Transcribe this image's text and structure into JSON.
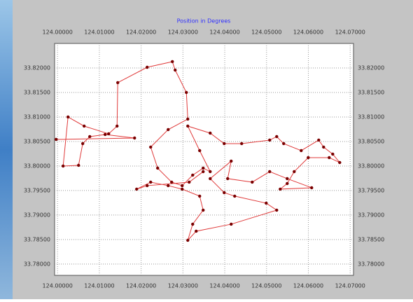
{
  "chart_data": {
    "type": "line",
    "title": "Position in Degrees",
    "x": [
      123.99967,
      124.01843,
      124.01139,
      124.00771,
      124.00603,
      124.00503,
      124.00134,
      124.00251,
      124.00637,
      124.01223,
      124.01424,
      124.01441,
      124.02144,
      124.02747,
      124.02814,
      124.03082,
      124.03116,
      124.02647,
      124.02228,
      124.02395,
      124.0273,
      124.02982,
      124.03233,
      124.03484,
      124.03652,
      124.034,
      124.03116,
      124.03652,
      124.03987,
      124.04405,
      124.05075,
      124.05243,
      124.0541,
      124.05829,
      124.06248,
      124.06365,
      124.06583,
      124.0675,
      124.06499,
      124.05997,
      124.05662,
      124.05494,
      124.05327,
      124.0608,
      124.05494,
      124.05075,
      124.04657,
      124.0407,
      124.04154,
      124.03652,
      124.03987,
      124.04238,
      124.04992,
      124.05243,
      124.04154,
      124.03317,
      124.03116,
      124.03233,
      124.03484,
      124.034,
      124.02982,
      124.02647,
      124.02228,
      124.01893,
      124.02144,
      124.03149,
      124.03484
    ],
    "series": [
      {
        "color": "#e03a3a",
        "marker_color": "#7a0000",
        "values": [
          33.80543,
          33.80571,
          33.80643,
          33.806,
          33.80457,
          33.80014,
          33.8,
          33.81,
          33.80814,
          33.80657,
          33.80814,
          33.817,
          33.82014,
          33.82129,
          33.81957,
          33.815,
          33.80957,
          33.80743,
          33.80386,
          33.79957,
          33.79671,
          33.796,
          33.79814,
          33.79957,
          33.79886,
          33.80314,
          33.80814,
          33.80671,
          33.80457,
          33.80457,
          33.80529,
          33.806,
          33.80457,
          33.80314,
          33.80529,
          33.80386,
          33.80243,
          33.80071,
          33.80171,
          33.80171,
          33.79886,
          33.79643,
          33.79529,
          33.79557,
          33.79743,
          33.79886,
          33.79671,
          33.79743,
          33.801,
          33.79743,
          33.79457,
          33.79386,
          33.79243,
          33.791,
          33.78814,
          33.78671,
          33.78486,
          33.78814,
          33.791,
          33.79386,
          33.79529,
          33.796,
          33.79671,
          33.79529,
          33.796,
          33.79671,
          33.79886
        ]
      }
    ],
    "xlim": [
      123.9993,
      124.0708
    ],
    "ylim": [
      33.7777,
      33.825
    ],
    "xticks": [
      {
        "value": 124.0,
        "label": "124.00000"
      },
      {
        "value": 124.01,
        "label": "124.01000"
      },
      {
        "value": 124.02,
        "label": "124.02000"
      },
      {
        "value": 124.03,
        "label": "124.03000"
      },
      {
        "value": 124.04,
        "label": "124.04000"
      },
      {
        "value": 124.05,
        "label": "124.05000"
      },
      {
        "value": 124.06,
        "label": "124.06000"
      },
      {
        "value": 124.07,
        "label": "124.07000"
      }
    ],
    "yticks": [
      {
        "value": 33.78,
        "label": "33.78000"
      },
      {
        "value": 33.785,
        "label": "33.78500"
      },
      {
        "value": 33.79,
        "label": "33.79000"
      },
      {
        "value": 33.795,
        "label": "33.79500"
      },
      {
        "value": 33.8,
        "label": "33.80000"
      },
      {
        "value": 33.805,
        "label": "33.80500"
      },
      {
        "value": 33.81,
        "label": "33.81000"
      },
      {
        "value": 33.815,
        "label": "33.81500"
      },
      {
        "value": 33.82,
        "label": "33.82000"
      }
    ],
    "grid": true
  }
}
